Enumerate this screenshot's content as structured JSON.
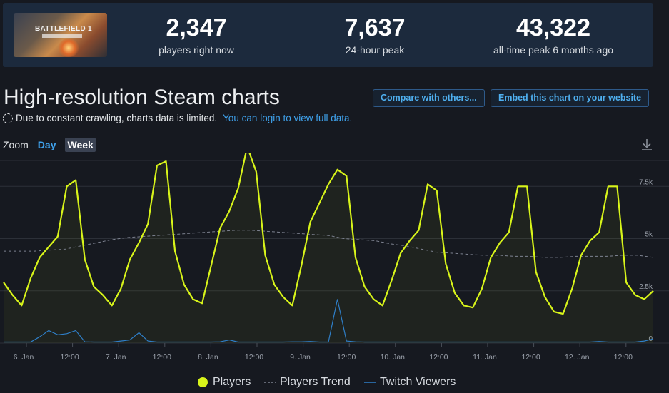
{
  "game": {
    "thumb_text": "BATTLEFIELD 1",
    "thumb_alt": "battlefield-1-cover"
  },
  "stats": [
    {
      "value": "2,347",
      "label": "players right now"
    },
    {
      "value": "7,637",
      "label": "24-hour peak"
    },
    {
      "value": "43,322",
      "label": "all-time peak 6 months ago"
    }
  ],
  "header": {
    "title": "High-resolution Steam charts",
    "compare_label": "Compare with others...",
    "embed_label": "Embed this chart on your website"
  },
  "notice": {
    "text": "Due to constant crawling, charts data is limited.",
    "link": "You can login to view full data."
  },
  "zoom": {
    "label": "Zoom",
    "options": [
      "Day",
      "Week"
    ],
    "active": "Week"
  },
  "colors": {
    "players": "#d8f41a",
    "trend": "#7d8290",
    "twitch": "#2f7fc8",
    "grid": "#2c3038",
    "accent": "#3fa2ec"
  },
  "chart_data": {
    "type": "line",
    "grid": true,
    "y_unit": "players",
    "ylim": [
      0,
      9000
    ],
    "y_ticks": [
      {
        "value": 0,
        "label": "0"
      },
      {
        "value": 2500,
        "label": "2.5k"
      },
      {
        "value": 5000,
        "label": "5k"
      },
      {
        "value": 7500,
        "label": "7.5k"
      }
    ],
    "x_ticks": [
      "6. Jan",
      "12:00",
      "7. Jan",
      "12:00",
      "8. Jan",
      "12:00",
      "9. Jan",
      "12:00",
      "10. Jan",
      "12:00",
      "11. Jan",
      "12:00",
      "12. Jan",
      "12:00"
    ],
    "x_start": "2023-01-05 21:00",
    "step_hours": 3,
    "series": [
      {
        "name": "Players",
        "values": [
          2900,
          2300,
          1800,
          3100,
          4100,
          4600,
          5100,
          7500,
          7800,
          4000,
          2700,
          2300,
          1800,
          2600,
          4000,
          4800,
          5700,
          8500,
          8700,
          4400,
          2800,
          2100,
          1900,
          3700,
          5500,
          6300,
          7400,
          9400,
          8200,
          4200,
          2800,
          2200,
          1800,
          3700,
          5800,
          6700,
          7600,
          8300,
          8000,
          4100,
          2700,
          2100,
          1800,
          3000,
          4300,
          4900,
          5400,
          7600,
          7300,
          3800,
          2400,
          1800,
          1700,
          2600,
          4100,
          4800,
          5300,
          7500,
          7500,
          3400,
          2200,
          1500,
          1400,
          2600,
          4200,
          4900,
          5300,
          7500,
          7500,
          2900,
          2300,
          2100,
          2500
        ]
      },
      {
        "name": "Players Trend",
        "values": [
          4400,
          4400,
          4400,
          4450,
          4500,
          4650,
          4800,
          4950,
          5050,
          5100,
          5150,
          5200,
          5250,
          5300,
          5350,
          5400,
          5400,
          5350,
          5300,
          5250,
          5200,
          5150,
          5000,
          4950,
          4900,
          4750,
          4650,
          4500,
          4350,
          4300,
          4250,
          4200,
          4200,
          4150,
          4150,
          4100,
          4100,
          4150,
          4150,
          4150,
          4200,
          4200,
          4100
        ]
      },
      {
        "name": "Twitch Viewers",
        "values": [
          50,
          50,
          50,
          50,
          300,
          600,
          400,
          450,
          600,
          60,
          50,
          50,
          50,
          100,
          150,
          500,
          100,
          50,
          50,
          50,
          50,
          50,
          50,
          50,
          60,
          150,
          50,
          50,
          50,
          50,
          50,
          50,
          60,
          60,
          80,
          50,
          50,
          2100,
          100,
          60,
          50,
          50,
          50,
          50,
          50,
          50,
          50,
          50,
          50,
          50,
          50,
          50,
          50,
          50,
          50,
          50,
          50,
          50,
          50,
          50,
          50,
          50,
          50,
          50,
          50,
          50,
          80,
          50,
          50,
          50,
          50,
          100,
          200
        ]
      }
    ]
  }
}
